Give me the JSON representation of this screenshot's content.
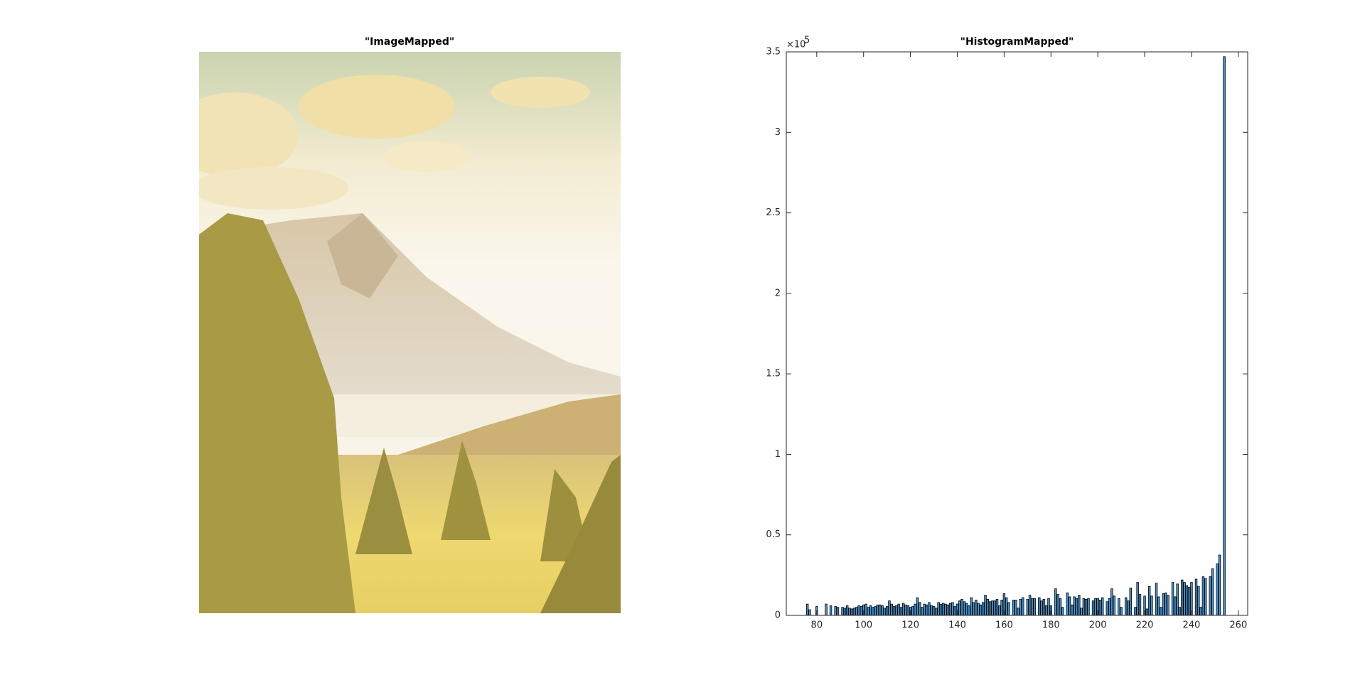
{
  "chart_data": [
    {
      "type": "image",
      "title": "\"ImageMapped\""
    },
    {
      "type": "bar",
      "title": "\"HistogramMapped\"",
      "y_exponent_base": "×10",
      "y_exponent": "5",
      "x": [
        76,
        77,
        78,
        79,
        80,
        81,
        82,
        83,
        84,
        85,
        86,
        87,
        88,
        89,
        90,
        91,
        92,
        93,
        94,
        95,
        96,
        97,
        98,
        99,
        100,
        101,
        102,
        103,
        104,
        105,
        106,
        107,
        108,
        109,
        110,
        111,
        112,
        113,
        114,
        115,
        116,
        117,
        118,
        119,
        120,
        121,
        122,
        123,
        124,
        125,
        126,
        127,
        128,
        129,
        130,
        131,
        132,
        133,
        134,
        135,
        136,
        137,
        138,
        139,
        140,
        141,
        142,
        143,
        144,
        145,
        146,
        147,
        148,
        149,
        150,
        151,
        152,
        153,
        154,
        155,
        156,
        157,
        158,
        159,
        160,
        161,
        162,
        163,
        164,
        165,
        166,
        167,
        168,
        169,
        170,
        171,
        172,
        173,
        174,
        175,
        176,
        177,
        178,
        179,
        180,
        181,
        182,
        183,
        184,
        185,
        186,
        187,
        188,
        189,
        190,
        191,
        192,
        193,
        194,
        195,
        196,
        197,
        198,
        199,
        200,
        201,
        202,
        203,
        204,
        205,
        206,
        207,
        208,
        209,
        210,
        211,
        212,
        213,
        214,
        215,
        216,
        217,
        218,
        219,
        220,
        221,
        222,
        223,
        224,
        225,
        226,
        227,
        228,
        229,
        230,
        231,
        232,
        233,
        234,
        235,
        236,
        237,
        238,
        239,
        240,
        241,
        242,
        243,
        244,
        245,
        246,
        247,
        248,
        249,
        250,
        251,
        252,
        253,
        254
      ],
      "values": [
        7000,
        3500,
        0,
        0,
        5500,
        0,
        0,
        0,
        7000,
        0,
        6000,
        0,
        5500,
        5000,
        0,
        5000,
        4500,
        6000,
        4500,
        4000,
        4500,
        5000,
        6000,
        5500,
        6500,
        7000,
        5000,
        6000,
        5000,
        5500,
        6500,
        6500,
        6000,
        4500,
        5500,
        9000,
        7000,
        5500,
        6000,
        7000,
        5000,
        7500,
        6500,
        6000,
        5000,
        5500,
        7000,
        11000,
        8000,
        5000,
        7000,
        6500,
        8000,
        6000,
        5500,
        4500,
        8000,
        7000,
        7500,
        7000,
        6500,
        7500,
        8000,
        5500,
        7000,
        9000,
        10000,
        8500,
        7500,
        6000,
        11000,
        8000,
        9500,
        7500,
        6500,
        8000,
        12500,
        10000,
        8500,
        9000,
        9000,
        10000,
        6000,
        9500,
        13500,
        11000,
        8000,
        0,
        9500,
        9500,
        4500,
        10000,
        11000,
        0,
        10000,
        12500,
        10500,
        10500,
        0,
        11000,
        9000,
        10000,
        6000,
        10500,
        6000,
        0,
        16500,
        13000,
        10500,
        5000,
        0,
        14000,
        11500,
        6500,
        11500,
        10500,
        12500,
        4500,
        10500,
        10000,
        10500,
        0,
        9000,
        10500,
        10500,
        9500,
        11000,
        0,
        8500,
        10500,
        16500,
        12000,
        0,
        10500,
        5000,
        0,
        11000,
        9000,
        17000,
        0,
        5000,
        20500,
        13000,
        0,
        12000,
        4000,
        18000,
        12000,
        0,
        20000,
        11500,
        5000,
        13500,
        14000,
        12500,
        0,
        20500,
        11500,
        19500,
        5000,
        22000,
        20500,
        18500,
        17500,
        20500,
        0,
        22500,
        18000,
        5000,
        24000,
        23000,
        0,
        24000,
        29000,
        0,
        32000,
        37500,
        0,
        347000
      ],
      "color": "#4d94cc",
      "edgecolor": "#000000",
      "xlim": [
        67,
        264
      ],
      "xticks": [
        80,
        100,
        120,
        140,
        160,
        180,
        200,
        220,
        240,
        260
      ],
      "ylim": [
        0,
        350000
      ],
      "yticks": [
        0,
        {
          "value": 50000,
          "label": "0.5"
        },
        {
          "value": 100000,
          "label": "1"
        },
        {
          "value": 150000,
          "label": "1.5"
        },
        {
          "value": 200000,
          "label": "2"
        },
        {
          "value": 250000,
          "label": "2.5"
        },
        {
          "value": 300000,
          "label": "3"
        },
        {
          "value": 350000,
          "label": "3.5"
        }
      ],
      "box": true
    }
  ]
}
